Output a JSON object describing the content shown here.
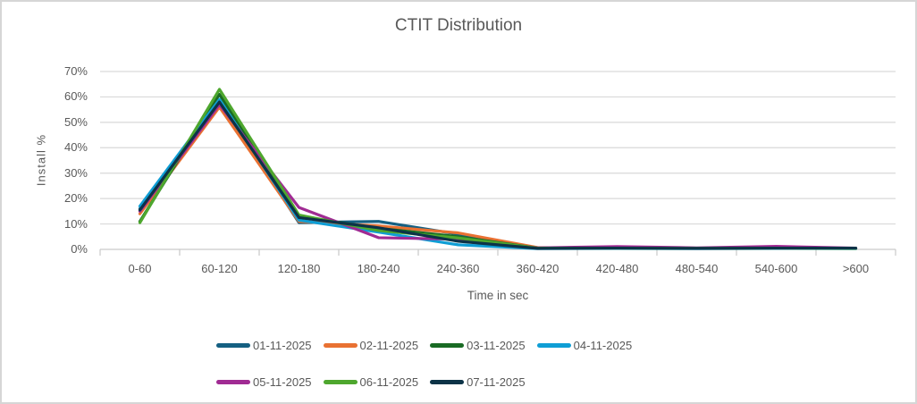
{
  "window": {
    "background_color": "#FFFFFF",
    "border_color": "#D6D6D6"
  },
  "colors": {
    "gridline": "#D9D9D9",
    "axis_line": "#C9C9C9",
    "tick_mark": "#C9C9C9",
    "text": "#595959",
    "title_text": "#595959"
  },
  "chart_data": {
    "type": "line",
    "title": "CTIT Distribution",
    "xlabel": "Time in sec",
    "ylabel": "Install %",
    "unit": "%",
    "ylim": [
      0,
      70
    ],
    "y_tick_step": 10,
    "y_tick_labels": [
      "0%",
      "10%",
      "20%",
      "30%",
      "40%",
      "50%",
      "60%",
      "70%"
    ],
    "grid": true,
    "legend_position": "bottom",
    "categories": [
      "0-60",
      "60-120",
      "120-180",
      "180-240",
      "240-360",
      "360-420",
      "420-480",
      "480-540",
      "540-600",
      ">600"
    ],
    "series": [
      {
        "name": "01-11-2025",
        "color": "#156082",
        "values": [
          16,
          58.5,
          10.5,
          11,
          6,
          0.6,
          0.7,
          0.5,
          0.5,
          0.4
        ]
      },
      {
        "name": "02-11-2025",
        "color": "#E97132",
        "values": [
          14,
          56,
          11,
          9.2,
          6.5,
          0.7,
          0.6,
          0.5,
          0.6,
          0.4
        ]
      },
      {
        "name": "03-11-2025",
        "color": "#196B24",
        "values": [
          11,
          61,
          13,
          8.3,
          5,
          0.5,
          0.5,
          0.4,
          0.5,
          0.4
        ]
      },
      {
        "name": "04-11-2025",
        "color": "#0F9ED5",
        "values": [
          17,
          59,
          11.5,
          6.8,
          1.8,
          0.3,
          0.4,
          0.3,
          0.4,
          0.3
        ]
      },
      {
        "name": "05-11-2025",
        "color": "#A02B93",
        "values": [
          15,
          57,
          16.5,
          4.6,
          4,
          0.6,
          1.1,
          0.6,
          1.2,
          0.5
        ]
      },
      {
        "name": "06-11-2025",
        "color": "#4EA72E",
        "values": [
          10.5,
          63,
          13.5,
          7.4,
          4.5,
          0.5,
          0.5,
          0.4,
          0.5,
          0.4
        ]
      },
      {
        "name": "07-11-2025",
        "color": "#0C3347",
        "values": [
          15.5,
          58,
          12.5,
          8.5,
          3.2,
          0.4,
          0.5,
          0.4,
          0.5,
          0.5
        ]
      }
    ],
    "legend_rows": [
      [
        0,
        1,
        2,
        3
      ],
      [
        4,
        5,
        6
      ]
    ]
  }
}
